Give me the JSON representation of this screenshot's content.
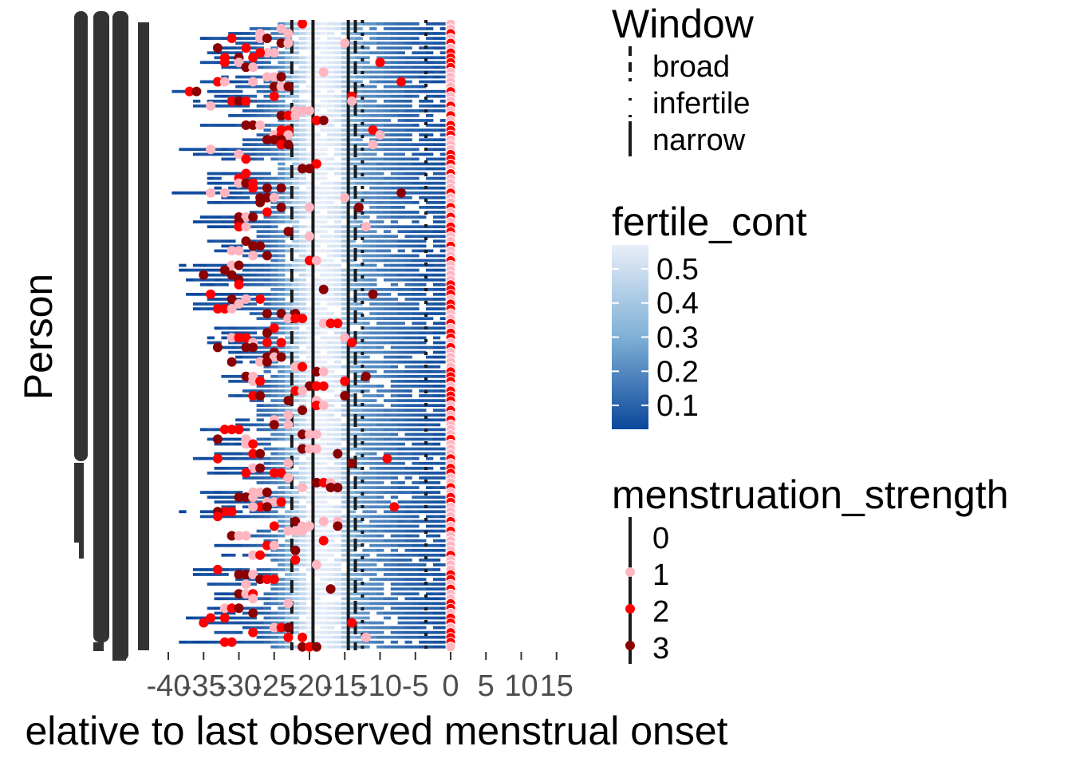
{
  "chart_data": {
    "type": "heatmap",
    "title": "",
    "xlabel": "elative to last observed menstrual onset",
    "ylabel": "Person",
    "xlim": [
      -40,
      15
    ],
    "x_ticks": [
      -40,
      -35,
      -30,
      -25,
      -20,
      -15,
      -10,
      -5,
      0,
      5,
      10,
      15
    ],
    "x_tick_labels": [
      "-40",
      "-35",
      "-30",
      "-25",
      "-20",
      "-15",
      "-10",
      "-5",
      "0",
      "5",
      "10",
      "15"
    ],
    "person_rows_approx": 130,
    "window_lines": [
      {
        "name": "broad",
        "linetype": "dashed",
        "x": [
          -22.5,
          -13.5
        ]
      },
      {
        "name": "infertile",
        "linetype": "dotted",
        "x": [
          -12.5,
          -3.5
        ]
      },
      {
        "name": "narrow",
        "linetype": "solid",
        "x": [
          -19.5,
          -14.5
        ]
      }
    ],
    "fertile_cont": {
      "legend_title": "fertile_cont",
      "range": [
        0.03,
        0.57
      ],
      "breaks": [
        0.5,
        0.4,
        0.3,
        0.2,
        0.1
      ],
      "break_labels": [
        "0.5",
        "0.4",
        "0.3",
        "0.2",
        "0.1"
      ],
      "low_color": "#0b479b",
      "mid_color": "#7fb0d6",
      "high_color": "#e8eef9",
      "profile_by_day": [
        {
          "x": -40,
          "value": 0.03
        },
        {
          "x": -30,
          "value": 0.06
        },
        {
          "x": -26,
          "value": 0.12
        },
        {
          "x": -24,
          "value": 0.22
        },
        {
          "x": -22,
          "value": 0.4
        },
        {
          "x": -20,
          "value": 0.55
        },
        {
          "x": -18,
          "value": 0.57
        },
        {
          "x": -16,
          "value": 0.52
        },
        {
          "x": -15,
          "value": 0.4
        },
        {
          "x": -14,
          "value": 0.3
        },
        {
          "x": -12,
          "value": 0.22
        },
        {
          "x": -10,
          "value": 0.18
        },
        {
          "x": -7,
          "value": 0.12
        },
        {
          "x": -4,
          "value": 0.08
        },
        {
          "x": 0,
          "value": 0.05
        }
      ]
    },
    "menstruation_strength": {
      "legend_title": "menstruation_strength",
      "levels": [
        "0",
        "1",
        "2",
        "3"
      ],
      "colors": [
        "#000000",
        "#ffb6c1",
        "#ff0000",
        "#8b0000"
      ]
    },
    "legend_window_title": "Window",
    "legend_window_labels": [
      "broad",
      "infertile",
      "narrow"
    ]
  }
}
